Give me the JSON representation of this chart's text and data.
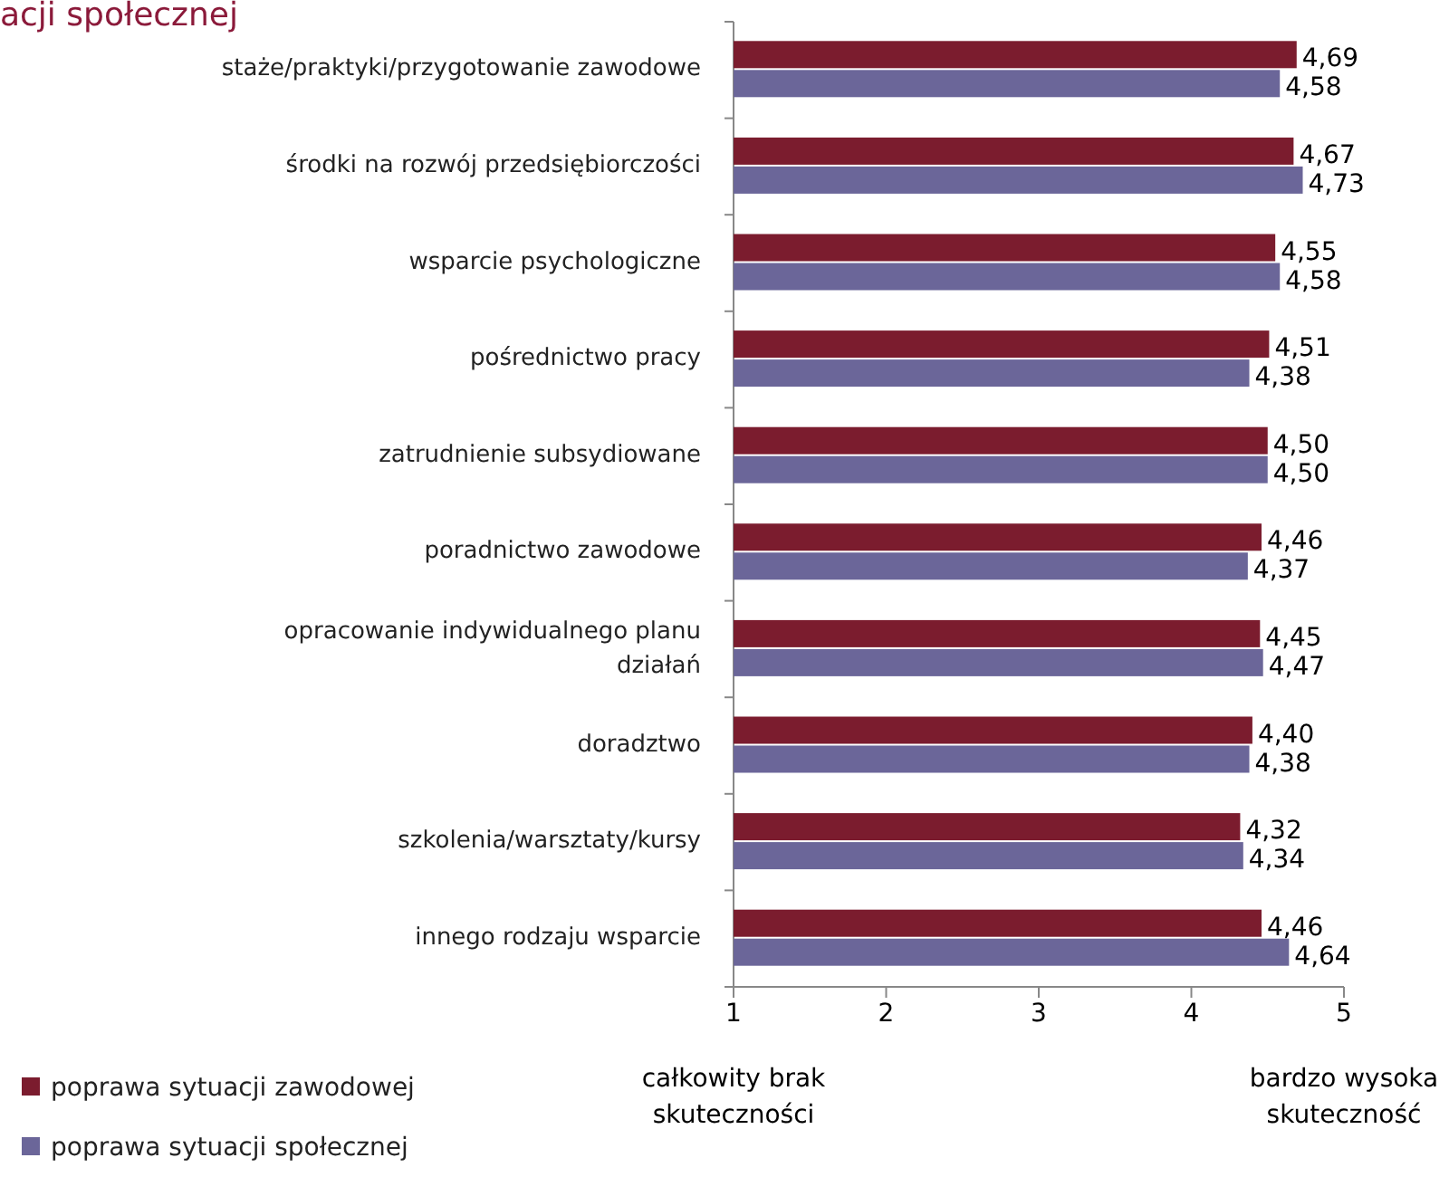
{
  "chart_data": {
    "type": "bar",
    "orientation": "horizontal",
    "title": "acji społecznej",
    "categories": [
      "staże/praktyki/przygotowanie zawodowe",
      "środki na rozwój przedsiębiorczości",
      "wsparcie psychologiczne",
      "pośrednictwo pracy",
      "zatrudnienie subsydiowane",
      "poradnictwo zawodowe",
      "opracowanie indywidualnego planu działań",
      "doradztwo",
      "szkolenia/warsztaty/kursy",
      "innego rodzaju wsparcie"
    ],
    "series": [
      {
        "name": "poprawa sytuacji zawodowej",
        "color": "#7b1c2e",
        "values": [
          4.69,
          4.67,
          4.55,
          4.51,
          4.5,
          4.46,
          4.45,
          4.4,
          4.32,
          4.46
        ],
        "value_labels": [
          "4,69",
          "4,67",
          "4,55",
          "4,51",
          "4,50",
          "4,46",
          "4,45",
          "4,40",
          "4,32",
          "4,46"
        ]
      },
      {
        "name": "poprawa sytuacji społecznej",
        "color": "#6b6699",
        "values": [
          4.58,
          4.73,
          4.58,
          4.38,
          4.5,
          4.37,
          4.47,
          4.38,
          4.34,
          4.64
        ],
        "value_labels": [
          "4,58",
          "4,73",
          "4,58",
          "4,38",
          "4,50",
          "4,37",
          "4,47",
          "4,38",
          "4,34",
          "4,64"
        ]
      }
    ],
    "xlim": [
      1,
      5
    ],
    "xticks": [
      1,
      2,
      3,
      4,
      5
    ],
    "legend": "bottom left",
    "annotations": [
      "całkowity brak skuteczności",
      "bardzo wysoka skuteczność"
    ]
  }
}
